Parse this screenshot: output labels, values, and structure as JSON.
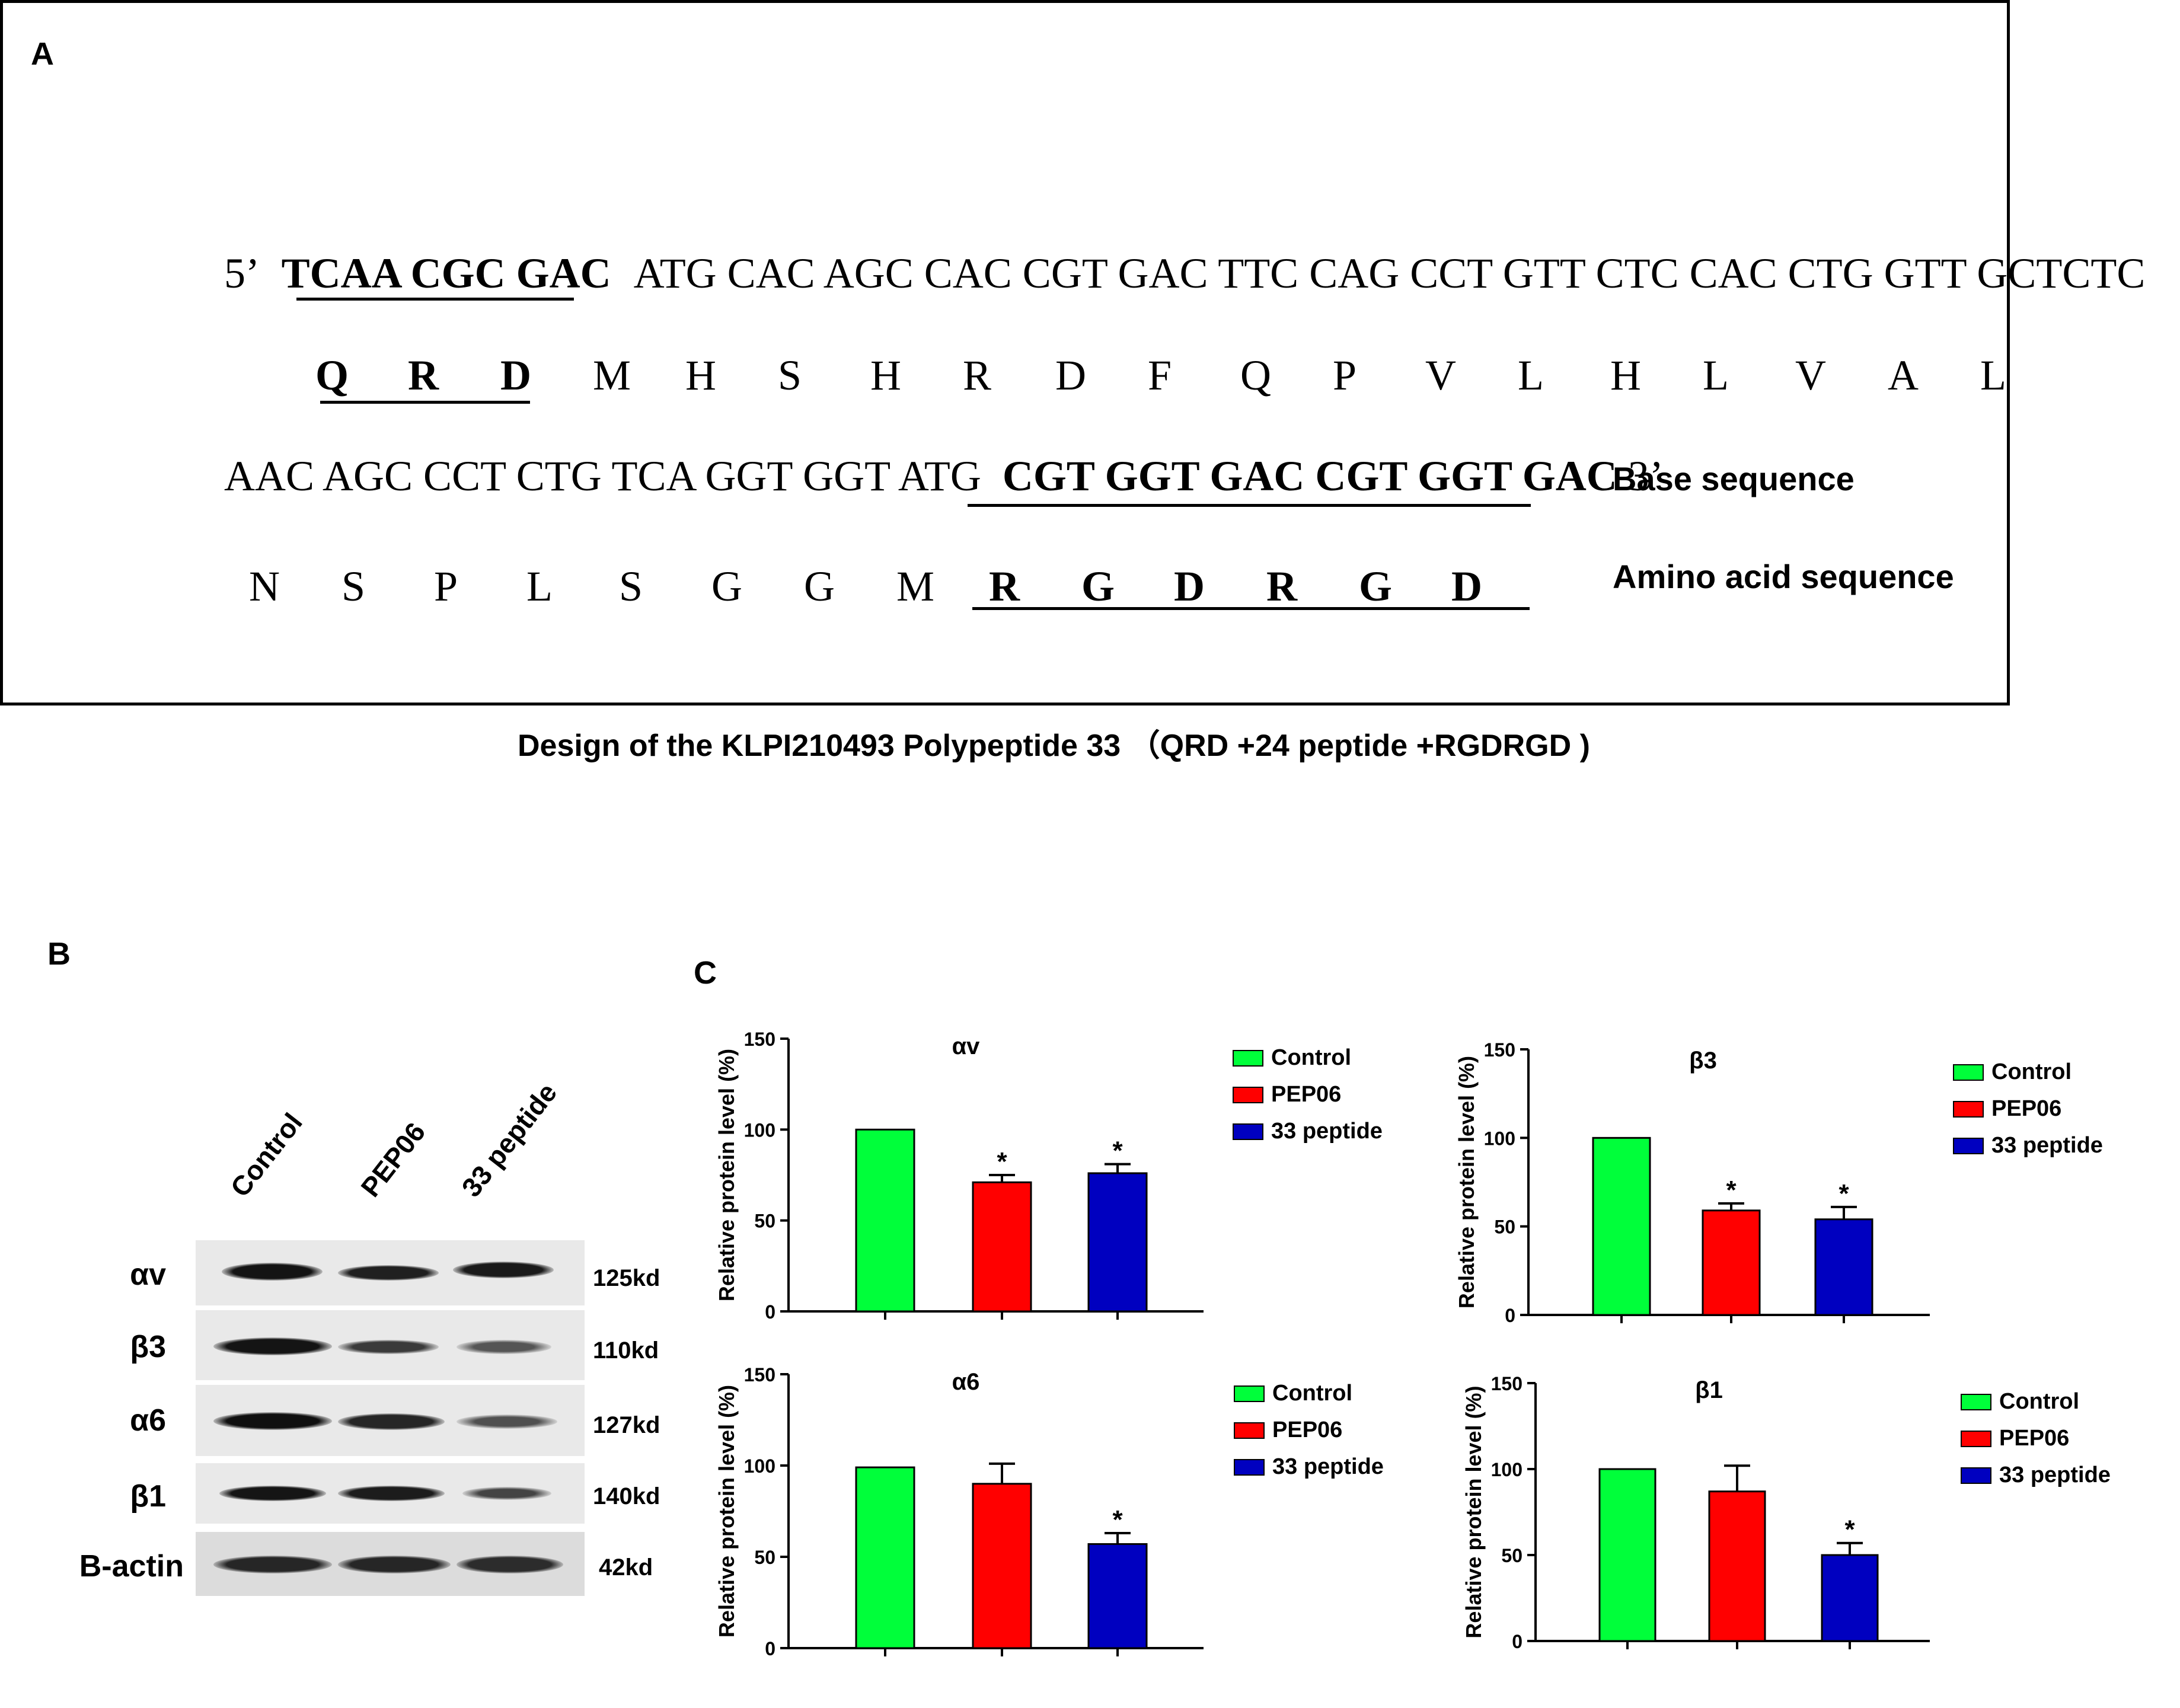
{
  "panel_labels": {
    "a": "A",
    "b": "B",
    "c": "C"
  },
  "panel_a": {
    "line1_prefix": "5’",
    "line1_bold": "TCAA CGC GAC",
    "line1_rest": "ATG CAC AGC CAC CGT GAC TTC CAG CCT GTT CTC CAC CTG GTT GCTCTC",
    "line2_bold": [
      "Q",
      "R",
      "D"
    ],
    "line2_rest": [
      "M",
      "H",
      "S",
      "H",
      "R",
      "D",
      "F",
      "Q",
      "P",
      "V",
      "L",
      "H",
      "L",
      "V",
      "A",
      "L"
    ],
    "line3_plain": "AAC AGC CCT CTG TCA GGT GGT ATG",
    "line3_bold": "CGT GGT GAC CGT GGT GAC",
    "line3_suffix": "3’",
    "line4_plain": [
      "N",
      "S",
      "P",
      "L",
      "S",
      "G",
      "G",
      "M"
    ],
    "line4_bold": [
      "R",
      "G",
      "D",
      "R",
      "G",
      "D"
    ],
    "legend_base": "Base sequence",
    "legend_amino": "Amino acid sequence",
    "caption": "Design of the KLPI210493 Polypeptide 33 （QRD +24 peptide +RGDRGD )"
  },
  "panel_b": {
    "lanes": [
      "Control",
      "PEP06",
      "33 peptide"
    ],
    "rows": [
      {
        "protein": "αv",
        "kd": "125kd"
      },
      {
        "protein": "β3",
        "kd": "110kd"
      },
      {
        "protein": "α6",
        "kd": "127kd"
      },
      {
        "protein": "β1",
        "kd": "140kd"
      },
      {
        "protein": "B-actin",
        "kd": "42kd"
      }
    ]
  },
  "chart_data": [
    {
      "type": "bar",
      "title": "αv",
      "ylabel": "Relative protein level (%)",
      "ylim": [
        0,
        150
      ],
      "yticks": [
        0,
        50,
        100,
        150
      ],
      "categories": [
        "Control",
        "PEP06",
        "33 peptide"
      ],
      "values": [
        100,
        71,
        76
      ],
      "errors": [
        0,
        4,
        5
      ],
      "significance": [
        "",
        "*",
        "*"
      ],
      "colors": [
        "#00ff3a",
        "#ff0000",
        "#0000c0"
      ],
      "legend": "right"
    },
    {
      "type": "bar",
      "title": "β3",
      "ylabel": "Relative protein level (%)",
      "ylim": [
        0,
        150
      ],
      "yticks": [
        0,
        50,
        100,
        150
      ],
      "categories": [
        "Control",
        "PEP06",
        "33 peptide"
      ],
      "values": [
        100,
        59,
        54
      ],
      "errors": [
        0,
        4,
        7
      ],
      "significance": [
        "",
        "*",
        "*"
      ],
      "colors": [
        "#00ff3a",
        "#ff0000",
        "#0000c0"
      ],
      "legend": "right"
    },
    {
      "type": "bar",
      "title": "α6",
      "ylabel": "Relative protein level (%)",
      "ylim": [
        0,
        150
      ],
      "yticks": [
        0,
        50,
        100,
        150
      ],
      "categories": [
        "Control",
        "PEP06",
        "33 peptide"
      ],
      "values": [
        99,
        90,
        57
      ],
      "errors": [
        0,
        11,
        6
      ],
      "significance": [
        "",
        "",
        "*"
      ],
      "colors": [
        "#00ff3a",
        "#ff0000",
        "#0000c0"
      ],
      "legend": "right"
    },
    {
      "type": "bar",
      "title": "β1",
      "ylabel": "Relative protein level (%)",
      "ylim": [
        0,
        150
      ],
      "yticks": [
        0,
        50,
        100,
        150
      ],
      "categories": [
        "Control",
        "PEP06",
        "33 peptide"
      ],
      "values": [
        100,
        87,
        50
      ],
      "errors": [
        0,
        15,
        7
      ],
      "significance": [
        "",
        "",
        "*"
      ],
      "colors": [
        "#00ff3a",
        "#ff0000",
        "#0000c0"
      ],
      "legend": "right"
    }
  ]
}
